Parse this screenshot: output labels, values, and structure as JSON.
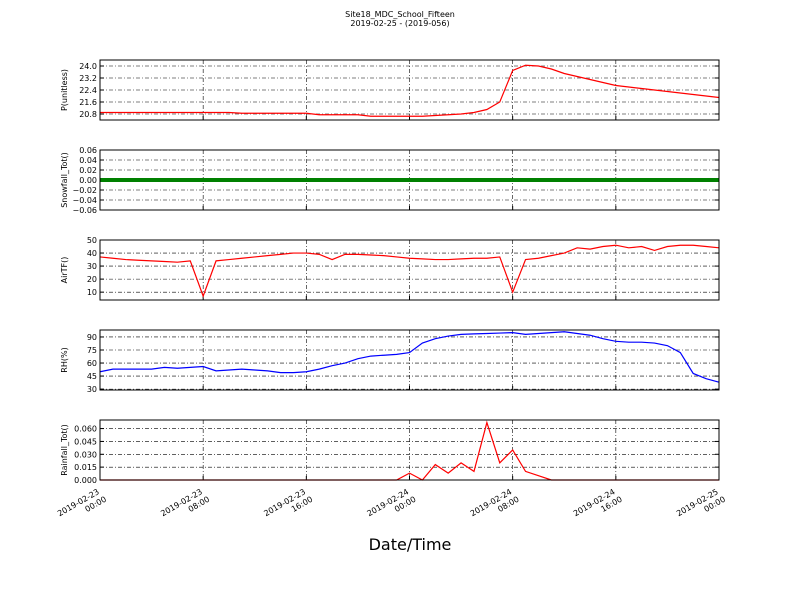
{
  "chart_data": {
    "title": "Site18_MDC_School_Fifteen",
    "subtitle": "2019-02-25 - (2019-056)",
    "xlabel": "Date/Time",
    "grid": true,
    "xlim": [
      "2019-02-23 00:00",
      "2019-02-25 00:00"
    ],
    "xticks": [
      "2019-02-23 00:00",
      "2019-02-23 08:00",
      "2019-02-23 16:00",
      "2019-02-24 00:00",
      "2019-02-24 08:00",
      "2019-02-24 16:00",
      "2019-02-25 00:00"
    ],
    "x": [
      "2019-02-23 00:00",
      "2019-02-23 01:00",
      "2019-02-23 02:00",
      "2019-02-23 03:00",
      "2019-02-23 04:00",
      "2019-02-23 05:00",
      "2019-02-23 06:00",
      "2019-02-23 07:00",
      "2019-02-23 08:00",
      "2019-02-23 09:00",
      "2019-02-23 10:00",
      "2019-02-23 11:00",
      "2019-02-23 12:00",
      "2019-02-23 13:00",
      "2019-02-23 14:00",
      "2019-02-23 15:00",
      "2019-02-23 16:00",
      "2019-02-23 17:00",
      "2019-02-23 18:00",
      "2019-02-23 19:00",
      "2019-02-23 20:00",
      "2019-02-23 21:00",
      "2019-02-23 22:00",
      "2019-02-23 23:00",
      "2019-02-24 00:00",
      "2019-02-24 01:00",
      "2019-02-24 02:00",
      "2019-02-24 03:00",
      "2019-02-24 04:00",
      "2019-02-24 05:00",
      "2019-02-24 06:00",
      "2019-02-24 07:00",
      "2019-02-24 08:00",
      "2019-02-24 09:00",
      "2019-02-24 10:00",
      "2019-02-24 11:00",
      "2019-02-24 12:00",
      "2019-02-24 13:00",
      "2019-02-24 14:00",
      "2019-02-24 15:00",
      "2019-02-24 16:00",
      "2019-02-24 17:00",
      "2019-02-24 18:00",
      "2019-02-24 19:00",
      "2019-02-24 20:00",
      "2019-02-24 21:00",
      "2019-02-24 22:00",
      "2019-02-24 23:00",
      "2019-02-25 00:00"
    ],
    "panels": [
      {
        "type": "line",
        "ylabel": "P(unitless)",
        "ylim": [
          20.4,
          24.4
        ],
        "yticks": [
          20.8,
          21.6,
          22.4,
          23.2,
          {
            "value": 24,
            "label": "24.0"
          }
        ],
        "series": [
          {
            "color": "#ff0000",
            "values": [
              20.9,
              20.9,
              20.9,
              20.9,
              20.9,
              20.9,
              20.9,
              20.9,
              20.9,
              20.9,
              20.9,
              20.85,
              20.85,
              20.85,
              20.85,
              20.85,
              20.85,
              20.75,
              20.75,
              20.75,
              20.75,
              20.65,
              20.65,
              20.65,
              20.65,
              20.65,
              20.7,
              20.75,
              20.8,
              20.9,
              21.1,
              21.6,
              23.7,
              24.05,
              24.0,
              23.8,
              23.5,
              23.3,
              23.1,
              22.9,
              22.7,
              22.6,
              22.5,
              22.4,
              22.3,
              22.2,
              22.1,
              22.0,
              21.9
            ]
          }
        ]
      },
      {
        "type": "line",
        "ylabel": "Snowfall_Tot()",
        "ylim": [
          -0.06,
          0.06
        ],
        "yticks": [
          {
            "value": -0.06,
            "label": "−0.06"
          },
          {
            "value": -0.04,
            "label": "−0.04"
          },
          {
            "value": -0.02,
            "label": "−0.02"
          },
          {
            "value": 0,
            "label": "0.00"
          },
          0.02,
          0.04,
          0.06
        ],
        "series": [
          {
            "color": "#008000",
            "values": [
              0,
              0,
              0,
              0,
              0,
              0,
              0,
              0,
              0,
              0,
              0,
              0,
              0,
              0,
              0,
              0,
              0,
              0,
              0,
              0,
              0,
              0,
              0,
              0,
              0,
              0,
              0,
              0,
              0,
              0,
              0,
              0,
              0,
              0,
              0,
              0,
              0,
              0,
              0,
              0,
              0,
              0,
              0,
              0,
              0,
              0,
              0,
              0,
              0
            ]
          }
        ]
      },
      {
        "type": "line",
        "ylabel": "AirTF()",
        "ylim": [
          4,
          50
        ],
        "yticks": [
          10,
          20,
          30,
          40,
          50
        ],
        "series": [
          {
            "color": "#ff0000",
            "values": [
              37,
              36,
              35,
              34.5,
              34,
              33.5,
              33,
              34,
              7,
              34,
              35,
              36,
              37,
              38,
              39,
              40,
              40,
              39,
              35,
              39,
              39,
              38.5,
              38,
              37,
              36,
              35.5,
              35,
              35,
              35.5,
              36,
              36,
              37,
              10,
              35,
              36,
              38,
              40,
              44,
              43,
              45,
              46,
              44,
              45,
              42,
              45,
              46,
              46,
              45,
              44
            ]
          }
        ]
      },
      {
        "type": "line",
        "ylabel": "RH(%)",
        "ylim": [
          29,
          98
        ],
        "yticks": [
          30,
          45,
          60,
          75,
          90
        ],
        "series": [
          {
            "color": "#0000ff",
            "values": [
              50,
              53,
              53,
              53,
              53,
              55,
              54,
              55,
              56,
              51,
              52,
              53,
              52,
              51,
              49,
              49,
              50,
              53,
              57,
              60,
              65,
              68,
              69,
              70,
              72,
              83,
              88,
              91,
              93,
              93.5,
              94,
              94.5,
              95,
              93,
              94,
              95,
              96,
              94,
              92,
              88,
              85,
              84,
              84,
              83,
              80,
              72,
              48,
              42,
              38
            ]
          }
        ]
      },
      {
        "type": "line",
        "ylabel": "Rainfall_Tot()",
        "ylim": [
          0,
          0.07
        ],
        "yticks": [
          {
            "value": 0,
            "label": "0.000"
          },
          0.015,
          {
            "value": 0.03,
            "label": "0.030"
          },
          0.045,
          {
            "value": 0.06,
            "label": "0.060"
          }
        ],
        "series": [
          {
            "color": "#ff0000",
            "values": [
              0,
              0,
              0,
              0,
              0,
              0,
              0,
              0,
              0,
              0,
              0,
              0,
              0,
              0,
              0,
              0,
              0,
              0,
              0,
              0,
              0,
              0,
              0,
              0,
              0.008,
              0,
              0.018,
              0.008,
              0.02,
              0.01,
              0.067,
              0.02,
              0.035,
              0.01,
              0.005,
              0,
              0,
              0,
              0,
              0,
              0,
              0,
              0,
              0,
              0,
              0,
              0,
              0,
              0
            ]
          }
        ]
      }
    ]
  }
}
